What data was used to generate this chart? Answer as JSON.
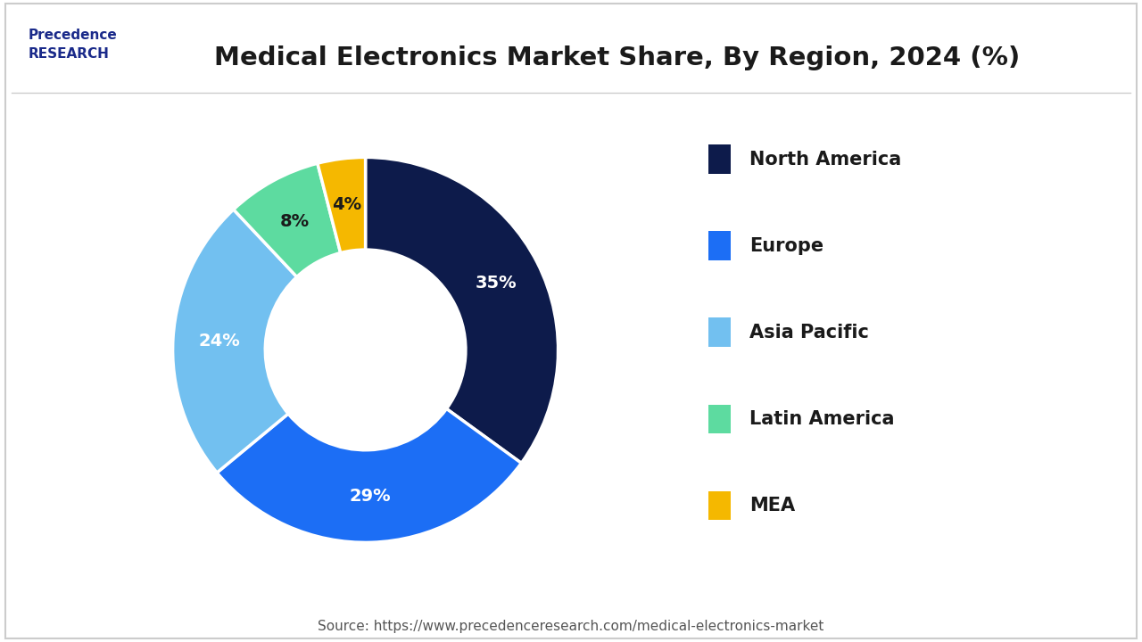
{
  "title": "Medical Electronics Market Share, By Region, 2024 (%)",
  "segments": [
    {
      "label": "North America",
      "value": 35,
      "color": "#0d1b4b"
    },
    {
      "label": "Europe",
      "value": 29,
      "color": "#1c6ef5"
    },
    {
      "label": "Asia Pacific",
      "value": 24,
      "color": "#72c0f0"
    },
    {
      "label": "Latin America",
      "value": 8,
      "color": "#5ddba0"
    },
    {
      "label": "MEA",
      "value": 4,
      "color": "#f5b800"
    }
  ],
  "label_colors": {
    "North America": "white",
    "Europe": "white",
    "Asia Pacific": "white",
    "Latin America": "#1a1a1a",
    "MEA": "#1a1a1a"
  },
  "source_text": "Source: https://www.precedenceresearch.com/medical-electronics-market",
  "background_color": "#ffffff",
  "border_color": "#cccccc",
  "title_fontsize": 21,
  "legend_fontsize": 15,
  "label_fontsize": 14,
  "source_fontsize": 11
}
